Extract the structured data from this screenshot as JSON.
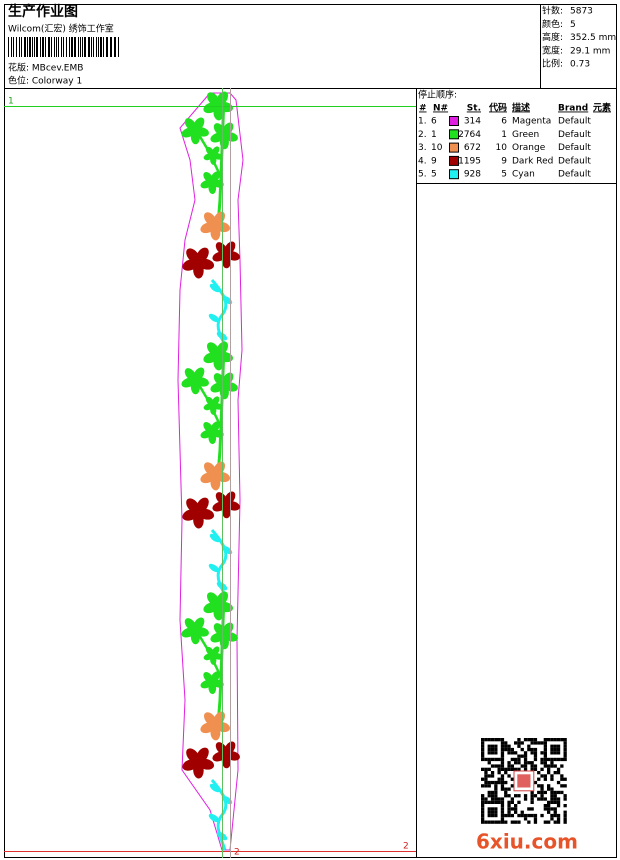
{
  "header": {
    "title": "生产作业图",
    "company": "Wilcom(汇宏) 绣饰工作室",
    "design": "花版:  MBcev.EMB",
    "colorway": "色位:  Colorway 1"
  },
  "stats": [
    {
      "label": "针数:",
      "value": "5873"
    },
    {
      "label": "颜色:",
      "value": "5"
    },
    {
      "label": "高度:",
      "value": "352.5 mm"
    },
    {
      "label": "宽度:",
      "value": "29.1 mm"
    },
    {
      "label": "比例:",
      "value": "0.73"
    }
  ],
  "stop_sequence": {
    "title": "停止顺序:",
    "columns": [
      "#",
      "N#",
      "St.",
      "代码",
      "描述",
      "Brand",
      "元素"
    ],
    "rows": [
      {
        "index": "1.",
        "needle": "6",
        "color": "#e020e0",
        "stitches": "314",
        "code": "6",
        "description": "Magenta",
        "brand": "Default"
      },
      {
        "index": "2.",
        "needle": "1",
        "color": "#20e020",
        "stitches": "2764",
        "code": "1",
        "description": "Green",
        "brand": "Default"
      },
      {
        "index": "3.",
        "needle": "10",
        "color": "#f09050",
        "stitches": "672",
        "code": "10",
        "description": "Orange",
        "brand": "Default"
      },
      {
        "index": "4.",
        "needle": "9",
        "color": "#a00000",
        "stitches": "1195",
        "code": "9",
        "description": "Dark Red",
        "brand": "Default"
      },
      {
        "index": "5.",
        "needle": "5",
        "color": "#20f0f0",
        "stitches": "928",
        "code": "5",
        "description": "Cyan",
        "brand": "Default"
      }
    ]
  },
  "markers": {
    "start": "1",
    "end": "2",
    "end_center": "2"
  },
  "watermark": "6xiu.com"
}
